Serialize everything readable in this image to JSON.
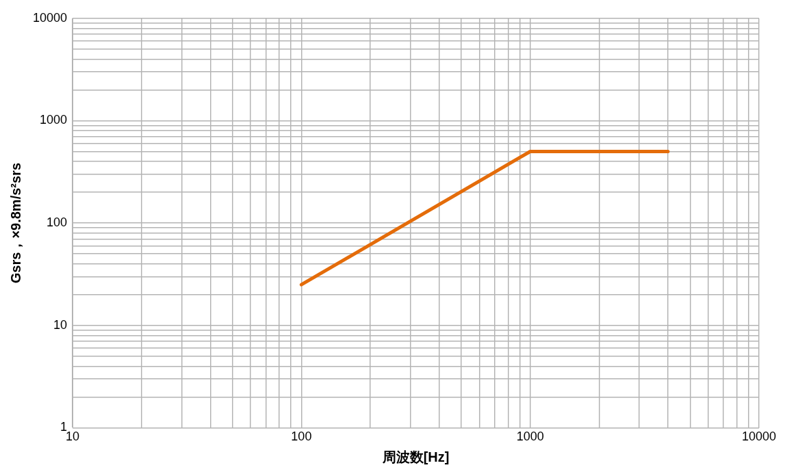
{
  "chart_data": {
    "type": "line",
    "xlabel": "周波数[Hz]",
    "ylabel": "Gsrs，×9.8m/s²srs",
    "log": "xy",
    "grid": true,
    "legend": false,
    "marker": "none",
    "line_style": "solid",
    "x": [
      100,
      1000,
      4000
    ],
    "series": [
      {
        "color": "#e46c0a",
        "values": [
          25,
          500,
          500
        ]
      }
    ],
    "xlim": [
      10,
      10000
    ],
    "xticks": [
      10,
      {
        "value": 20,
        "label": null
      },
      {
        "value": 30,
        "label": null
      },
      {
        "value": 40,
        "label": null
      },
      {
        "value": 50,
        "label": null
      },
      {
        "value": 60,
        "label": null
      },
      {
        "value": 70,
        "label": null
      },
      {
        "value": 80,
        "label": null
      },
      {
        "value": 90,
        "label": null
      },
      100,
      {
        "value": 200,
        "label": null
      },
      {
        "value": 300,
        "label": null
      },
      {
        "value": 400,
        "label": null
      },
      {
        "value": 500,
        "label": null
      },
      {
        "value": 600,
        "label": null
      },
      {
        "value": 700,
        "label": null
      },
      {
        "value": 800,
        "label": null
      },
      {
        "value": 900,
        "label": null
      },
      1000,
      {
        "value": 2000,
        "label": null
      },
      {
        "value": 3000,
        "label": null
      },
      {
        "value": 4000,
        "label": null
      },
      {
        "value": 5000,
        "label": null
      },
      {
        "value": 6000,
        "label": null
      },
      {
        "value": 7000,
        "label": null
      },
      {
        "value": 8000,
        "label": null
      },
      {
        "value": 9000,
        "label": null
      },
      10000
    ],
    "ylim": [
      1,
      10000
    ],
    "yticks": [
      1,
      {
        "value": 2,
        "label": null
      },
      {
        "value": 3,
        "label": null
      },
      {
        "value": 4,
        "label": null
      },
      {
        "value": 5,
        "label": null
      },
      {
        "value": 6,
        "label": null
      },
      {
        "value": 7,
        "label": null
      },
      {
        "value": 8,
        "label": null
      },
      {
        "value": 9,
        "label": null
      },
      10,
      {
        "value": 20,
        "label": null
      },
      {
        "value": 30,
        "label": null
      },
      {
        "value": 40,
        "label": null
      },
      {
        "value": 50,
        "label": null
      },
      {
        "value": 60,
        "label": null
      },
      {
        "value": 70,
        "label": null
      },
      {
        "value": 80,
        "label": null
      },
      {
        "value": 90,
        "label": null
      },
      100,
      {
        "value": 200,
        "label": null
      },
      {
        "value": 300,
        "label": null
      },
      {
        "value": 400,
        "label": null
      },
      {
        "value": 500,
        "label": null
      },
      {
        "value": 600,
        "label": null
      },
      {
        "value": 700,
        "label": null
      },
      {
        "value": 800,
        "label": null
      },
      {
        "value": 900,
        "label": null
      },
      1000,
      {
        "value": 2000,
        "label": null
      },
      {
        "value": 3000,
        "label": null
      },
      {
        "value": 4000,
        "label": null
      },
      {
        "value": 5000,
        "label": null
      },
      {
        "value": 6000,
        "label": null
      },
      {
        "value": 7000,
        "label": null
      },
      {
        "value": 8000,
        "label": null
      },
      {
        "value": 9000,
        "label": null
      },
      10000
    ]
  }
}
